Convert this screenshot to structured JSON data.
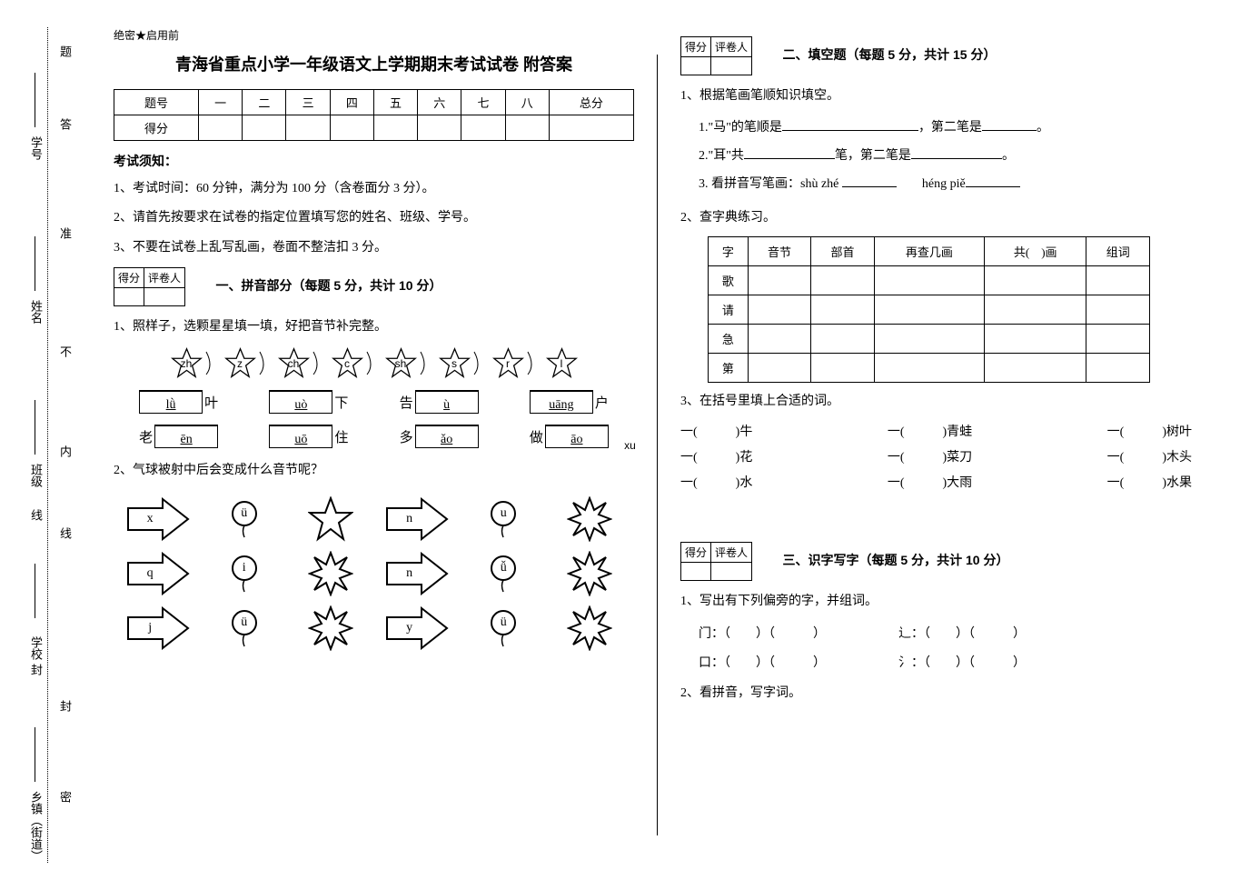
{
  "binding": {
    "labels": [
      "乡镇（街道）",
      "学校",
      "班级",
      "姓名",
      "学号"
    ],
    "inner": [
      "密",
      "封",
      "线",
      "内",
      "不",
      "准",
      "答",
      "题"
    ]
  },
  "header": {
    "secret": "绝密★启用前",
    "title": "青海省重点小学一年级语文上学期期末考试试卷 附答案",
    "cols": [
      "题号",
      "一",
      "二",
      "三",
      "四",
      "五",
      "六",
      "七",
      "八",
      "总分"
    ],
    "score_row_label": "得分",
    "instructions_title": "考试须知：",
    "ins1": "1、考试时间：60 分钟，满分为 100 分（含卷面分 3 分）。",
    "ins2": "2、请首先按要求在试卷的指定位置填写您的姓名、班级、学号。",
    "ins3": "3、不要在试卷上乱写乱画，卷面不整洁扣 3 分。"
  },
  "scorebox": {
    "c1": "得分",
    "c2": "评卷人"
  },
  "s1": {
    "title": "一、拼音部分（每题 5 分，共计 10 分）",
    "q1": "1、照样子，选颗星星填一填，好把音节补完整。",
    "stars": [
      "zh",
      "z",
      "ch",
      "c",
      "sh",
      "s",
      "r",
      "l"
    ],
    "row1": [
      {
        "box": "lǜ",
        "char": "叶"
      },
      {
        "box": "uò",
        "char": "下"
      },
      {
        "pre": "告",
        "box": "ù"
      },
      {
        "box": "uāng",
        "char": "户"
      }
    ],
    "row2": [
      {
        "pre": "老",
        "box": "ēn"
      },
      {
        "box": "uō",
        "char": "住"
      },
      {
        "pre": "多",
        "box": "ǎo"
      },
      {
        "pre": "做",
        "box": "āo"
      }
    ],
    "q2": "2、气球被射中后会变成什么音节呢？",
    "arrows": [
      [
        {
          "a": "x"
        },
        {
          "b": "ü"
        },
        {
          "star": true,
          "t": "xu"
        },
        {
          "a": "n"
        },
        {
          "b": "u"
        },
        {
          "star8": true
        }
      ],
      [
        {
          "a": "q"
        },
        {
          "b": "i"
        },
        {
          "star8": true
        },
        {
          "a": "n"
        },
        {
          "b": "ǚ"
        },
        {
          "star8": true
        }
      ],
      [
        {
          "a": "j"
        },
        {
          "b": "ü"
        },
        {
          "star8": true
        },
        {
          "a": "y"
        },
        {
          "b": "ü"
        },
        {
          "star8": true
        }
      ]
    ]
  },
  "s2": {
    "title": "二、填空题（每题 5 分，共计 15 分）",
    "q1": "1、根据笔画笔顺知识填空。",
    "l1a": "1.\"马\"的笔顺是",
    "l1b": "，第二笔是",
    "l1c": "。",
    "l2a": "2.\"耳\"共",
    "l2b": "笔，第二笔是",
    "l2c": "。",
    "l3a": "3. 看拼音写笔画：shù zhé",
    "l3b": "héng piě",
    "q2": "2、查字典练习。",
    "lookup_headers": [
      "字",
      "音节",
      "部首",
      "再查几画",
      "共(　)画",
      "组词"
    ],
    "lookup_rows": [
      "歌",
      "请",
      "急",
      "第"
    ],
    "q3": "3、在括号里填上合适的词。",
    "fills": [
      [
        {
          "w": "牛"
        },
        {
          "w": "青蛙"
        },
        {
          "w": "树叶"
        }
      ],
      [
        {
          "w": "花"
        },
        {
          "w": "菜刀"
        },
        {
          "w": "木头"
        }
      ],
      [
        {
          "w": "水"
        },
        {
          "w": "大雨"
        },
        {
          "w": "水果"
        }
      ]
    ]
  },
  "s3": {
    "title": "三、识字写字（每题 5 分，共计 10 分）",
    "q1": "1、写出有下列偏旁的字，并组词。",
    "radicals": [
      {
        "r": "门",
        "pair": "辶"
      },
      {
        "r": "口",
        "pair": "氵"
      }
    ],
    "q2": "2、看拼音，写字词。"
  }
}
